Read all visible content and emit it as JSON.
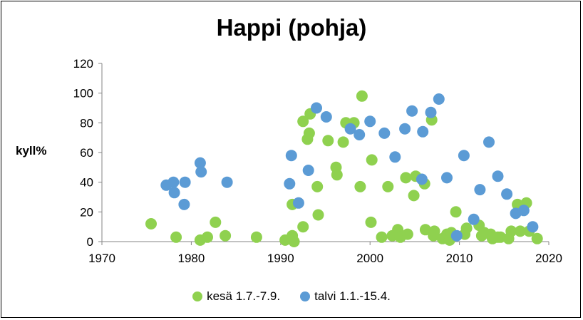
{
  "chart_data": {
    "type": "scatter",
    "title": "Happi (pohja)",
    "ylabel": "kyll%",
    "xlabel": "",
    "xlim": [
      1970,
      2020
    ],
    "ylim": [
      0,
      120
    ],
    "xticks": [
      1970,
      1980,
      1990,
      2000,
      2010,
      2020
    ],
    "yticks": [
      0,
      20,
      40,
      60,
      80,
      100,
      120
    ],
    "grid": "none",
    "legend_position": "bottom",
    "series": [
      {
        "name": "kesä 1.7.-7.9.",
        "color": "#8fd14f",
        "points": [
          [
            1975.5,
            12
          ],
          [
            1978.3,
            3
          ],
          [
            1981.0,
            1
          ],
          [
            1981.8,
            3
          ],
          [
            1982.7,
            13
          ],
          [
            1983.8,
            4
          ],
          [
            1987.3,
            3
          ],
          [
            1990.5,
            1
          ],
          [
            1991.3,
            4
          ],
          [
            1991.5,
            0
          ],
          [
            1991.3,
            25
          ],
          [
            1992.5,
            10
          ],
          [
            1992.5,
            81
          ],
          [
            1993.0,
            69
          ],
          [
            1993.2,
            73
          ],
          [
            1993.3,
            86
          ],
          [
            1994.1,
            37
          ],
          [
            1994.2,
            18
          ],
          [
            1995.3,
            68
          ],
          [
            1996.2,
            50
          ],
          [
            1996.3,
            45
          ],
          [
            1997.0,
            67
          ],
          [
            1997.3,
            80
          ],
          [
            1998.2,
            80
          ],
          [
            1998.9,
            37
          ],
          [
            1999.1,
            98
          ],
          [
            2000.1,
            13
          ],
          [
            2000.2,
            55
          ],
          [
            2001.3,
            3
          ],
          [
            2002.0,
            37
          ],
          [
            2002.5,
            4
          ],
          [
            2003.1,
            8
          ],
          [
            2003.4,
            3
          ],
          [
            2004.0,
            43
          ],
          [
            2004.2,
            5
          ],
          [
            2004.9,
            31
          ],
          [
            2005.1,
            44
          ],
          [
            2006.1,
            39
          ],
          [
            2006.2,
            8
          ],
          [
            2006.9,
            82
          ],
          [
            2007.1,
            4
          ],
          [
            2007.2,
            7
          ],
          [
            2008.1,
            2
          ],
          [
            2008.6,
            5
          ],
          [
            2008.9,
            1
          ],
          [
            2009.1,
            6
          ],
          [
            2009.6,
            20
          ],
          [
            2010.6,
            5
          ],
          [
            2010.8,
            9
          ],
          [
            2012.2,
            11
          ],
          [
            2012.5,
            4
          ],
          [
            2012.8,
            6
          ],
          [
            2013.5,
            5
          ],
          [
            2013.7,
            2
          ],
          [
            2014.3,
            3
          ],
          [
            2014.6,
            3
          ],
          [
            2015.5,
            2
          ],
          [
            2015.8,
            7
          ],
          [
            2016.5,
            25
          ],
          [
            2016.8,
            7
          ],
          [
            2017.5,
            26
          ],
          [
            2017.8,
            7
          ],
          [
            2018.7,
            2
          ]
        ]
      },
      {
        "name": "talvi 1.1.-15.4.",
        "color": "#5b9bd5",
        "points": [
          [
            1977.2,
            38
          ],
          [
            1978.0,
            40
          ],
          [
            1978.1,
            33
          ],
          [
            1979.2,
            25
          ],
          [
            1979.3,
            40
          ],
          [
            1981.0,
            53
          ],
          [
            1981.1,
            47
          ],
          [
            1984.0,
            40
          ],
          [
            1991.0,
            39
          ],
          [
            1991.2,
            58
          ],
          [
            1992.0,
            26
          ],
          [
            1993.1,
            48
          ],
          [
            1994.0,
            90
          ],
          [
            1995.1,
            84
          ],
          [
            1997.8,
            76
          ],
          [
            1998.8,
            72
          ],
          [
            2000.0,
            81
          ],
          [
            2001.6,
            73
          ],
          [
            2002.8,
            57
          ],
          [
            2003.9,
            76
          ],
          [
            2004.7,
            88
          ],
          [
            2005.8,
            42
          ],
          [
            2005.9,
            74
          ],
          [
            2006.8,
            87
          ],
          [
            2007.7,
            96
          ],
          [
            2008.6,
            43
          ],
          [
            2009.7,
            4
          ],
          [
            2010.5,
            58
          ],
          [
            2011.6,
            15
          ],
          [
            2012.3,
            35
          ],
          [
            2013.3,
            67
          ],
          [
            2014.3,
            44
          ],
          [
            2015.3,
            32
          ],
          [
            2016.3,
            19
          ],
          [
            2017.2,
            21
          ],
          [
            2018.2,
            10
          ]
        ]
      }
    ]
  }
}
